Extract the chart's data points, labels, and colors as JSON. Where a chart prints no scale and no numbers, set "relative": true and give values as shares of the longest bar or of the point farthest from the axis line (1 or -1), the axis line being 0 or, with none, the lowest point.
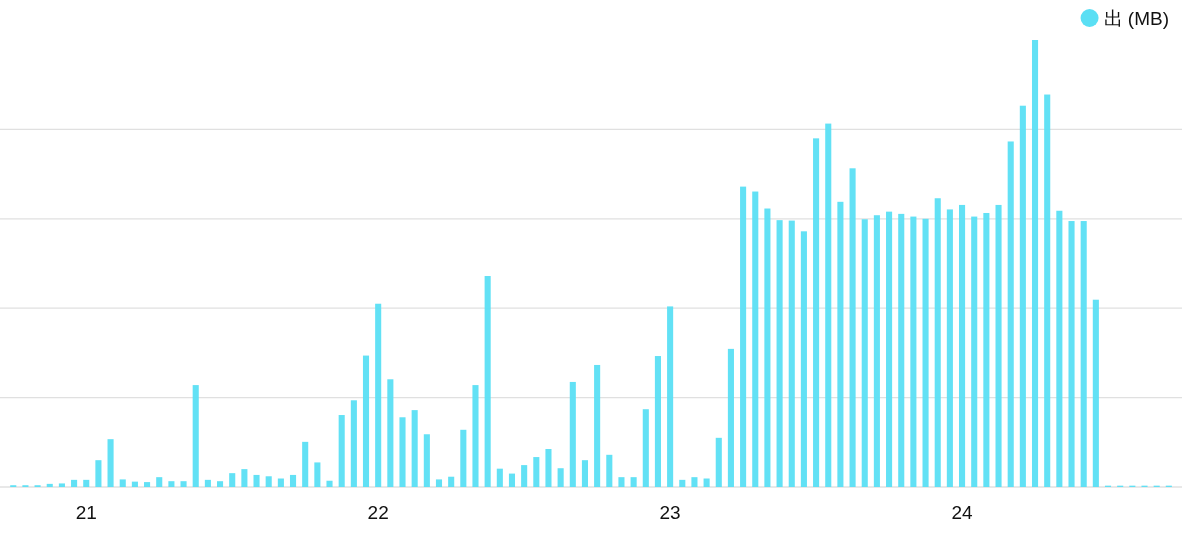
{
  "chart_data": {
    "type": "bar",
    "relative": true,
    "grid": "y",
    "legend": "top right",
    "x": [
      20.75,
      20.7917,
      20.8333,
      20.875,
      20.9167,
      20.9583,
      21,
      21.0417,
      21.0833,
      21.125,
      21.1667,
      21.2083,
      21.25,
      21.2917,
      21.3333,
      21.375,
      21.4167,
      21.4583,
      21.5,
      21.5417,
      21.5833,
      21.625,
      21.6667,
      21.7083,
      21.75,
      21.7917,
      21.8333,
      21.875,
      21.9167,
      21.9583,
      22,
      22.0417,
      22.0833,
      22.125,
      22.1667,
      22.2083,
      22.25,
      22.2917,
      22.3333,
      22.375,
      22.4167,
      22.4583,
      22.5,
      22.5417,
      22.5833,
      22.625,
      22.6667,
      22.7083,
      22.75,
      22.7917,
      22.8333,
      22.875,
      22.9167,
      22.9583,
      23,
      23.0417,
      23.0833,
      23.125,
      23.1667,
      23.2083,
      23.25,
      23.2917,
      23.3333,
      23.375,
      23.4167,
      23.4583,
      23.5,
      23.5417,
      23.5833,
      23.625,
      23.6667,
      23.7083,
      23.75,
      23.7917,
      23.8333,
      23.875,
      23.9167,
      23.9583,
      24,
      24.0417,
      24.0833,
      24.125,
      24.1667,
      24.2083,
      24.25,
      24.2917,
      24.3333,
      24.375,
      24.4167,
      24.4583,
      24.5,
      24.5417,
      24.5833,
      24.625,
      24.6667,
      24.7083
    ],
    "xlim": [
      20.708,
      24.75
    ],
    "xticks": [
      21,
      22,
      23,
      24
    ],
    "series": [
      {
        "name": "出 (MB)",
        "color": "#5adff4",
        "values": [
          0.004,
          0.004,
          0.004,
          0.007,
          0.008,
          0.016,
          0.016,
          0.06,
          0.107,
          0.017,
          0.012,
          0.011,
          0.022,
          0.013,
          0.013,
          0.228,
          0.016,
          0.013,
          0.031,
          0.04,
          0.027,
          0.024,
          0.019,
          0.027,
          0.101,
          0.055,
          0.014,
          0.161,
          0.194,
          0.294,
          0.41,
          0.241,
          0.156,
          0.172,
          0.118,
          0.017,
          0.023,
          0.128,
          0.228,
          0.472,
          0.041,
          0.03,
          0.049,
          0.067,
          0.085,
          0.042,
          0.235,
          0.06,
          0.273,
          0.072,
          0.022,
          0.022,
          0.174,
          0.293,
          0.404,
          0.016,
          0.022,
          0.019,
          0.11,
          0.309,
          0.672,
          0.661,
          0.623,
          0.597,
          0.596,
          0.572,
          0.78,
          0.813,
          0.638,
          0.713,
          0.599,
          0.608,
          0.616,
          0.611,
          0.605,
          0.6,
          0.646,
          0.621,
          0.631,
          0.605,
          0.613,
          0.631,
          0.773,
          0.853,
          1,
          0.878,
          0.618,
          0.595,
          0.595,
          0.419,
          0.003,
          0.003,
          0.003,
          0.003,
          0.003,
          0.003
        ]
      }
    ]
  }
}
